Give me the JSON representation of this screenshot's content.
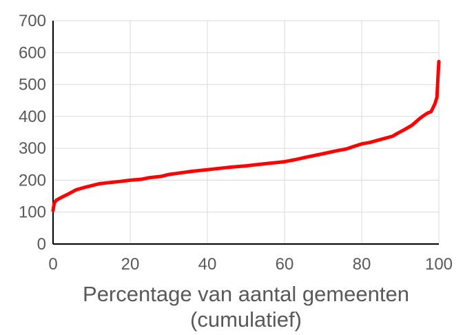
{
  "chart_data": {
    "type": "line",
    "title": "",
    "xlabel": "Percentage van aantal gemeenten",
    "xlabel_line2": "(cumulatief)",
    "ylabel": "",
    "xlim": [
      0,
      100
    ],
    "ylim": [
      0,
      700
    ],
    "x_ticks": [
      "0",
      "20",
      "40",
      "60",
      "80",
      "100"
    ],
    "y_ticks": [
      "0",
      "100",
      "200",
      "300",
      "400",
      "500",
      "600",
      "700"
    ],
    "grid": true,
    "legend": "none",
    "series": [
      {
        "color": "#ff0000",
        "x": [
          0,
          0.3,
          0.8,
          2,
          4,
          6,
          8,
          10,
          12,
          15,
          18,
          20,
          23,
          25,
          28,
          30,
          33,
          36,
          40,
          43,
          46,
          50,
          53,
          56,
          60,
          63,
          66,
          70,
          73,
          76,
          78,
          80,
          82,
          85,
          88,
          89,
          91,
          93,
          95,
          96,
          97,
          98,
          99,
          99.5,
          99.8,
          100
        ],
        "y": [
          105,
          128,
          137,
          145,
          157,
          170,
          177,
          183,
          189,
          193,
          197,
          200,
          203,
          208,
          212,
          218,
          223,
          228,
          233,
          237,
          241,
          245,
          249,
          253,
          258,
          265,
          273,
          283,
          291,
          298,
          306,
          314,
          318,
          328,
          338,
          345,
          358,
          372,
          393,
          402,
          410,
          415,
          440,
          460,
          530,
          572
        ]
      }
    ]
  }
}
